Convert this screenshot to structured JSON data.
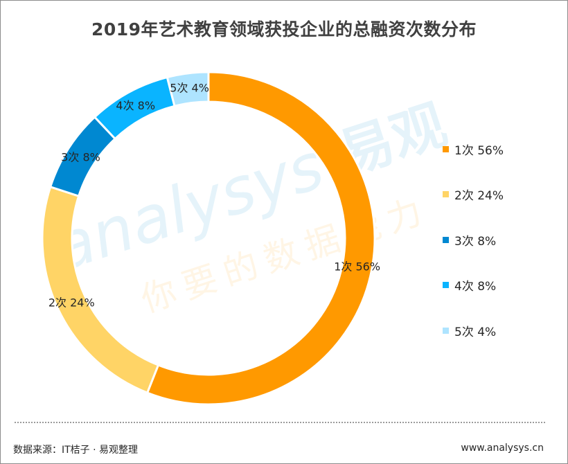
{
  "chart_data": {
    "type": "pie",
    "title": "2019年艺术教育领域获投企业的总融资次数分布",
    "categories": [
      "1次",
      "2次",
      "3次",
      "4次",
      "5次"
    ],
    "values": [
      56,
      24,
      8,
      8,
      4
    ],
    "labels": [
      "1次 56%",
      "2次 24%",
      "3次 8%",
      "4次 8%",
      "5次 4%"
    ],
    "colors": [
      "#FF9900",
      "#FFD466",
      "#0088D1",
      "#0AB4FF",
      "#AEE4FF"
    ],
    "donut": true,
    "legend_position": "right"
  },
  "footer": {
    "source": "数据来源：IT桔子 · 易观整理",
    "website": "www.analysys.cn"
  },
  "watermark": {
    "brand_cn": "易观",
    "brand_en": "analysys",
    "slogan": "你要的数据能力"
  }
}
